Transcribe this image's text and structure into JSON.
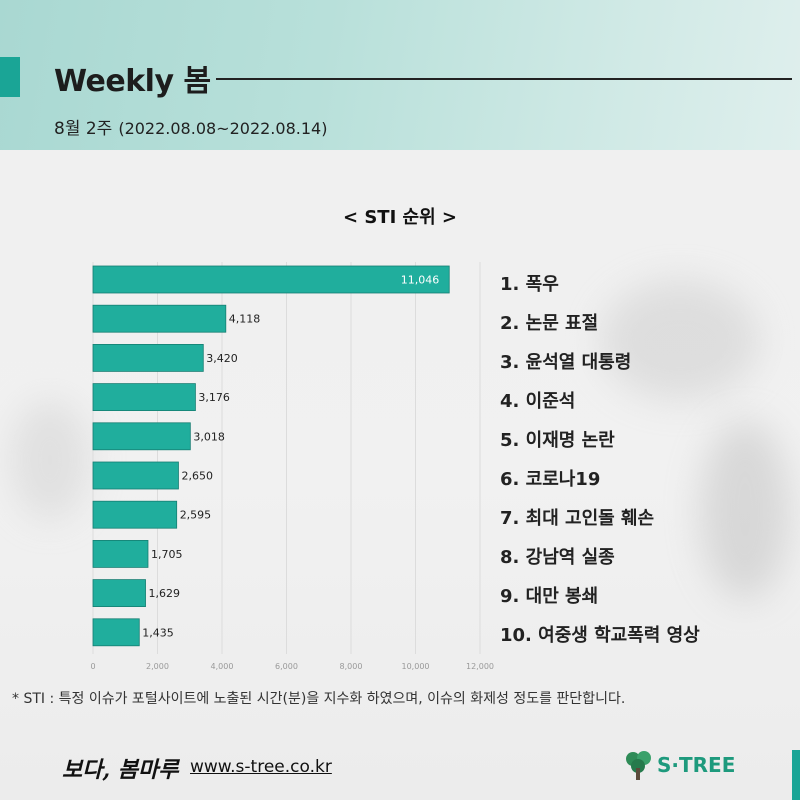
{
  "header": {
    "title": "Weekly 봄",
    "week_label": "8월 2주",
    "date_range": "(2022.08.08~2022.08.14)"
  },
  "chart_data": {
    "type": "bar",
    "title": "< STI 순위 >",
    "orientation": "horizontal",
    "categories": [
      "폭우",
      "논문 표절",
      "윤석열 대통령",
      "이준석",
      "이재명 논란",
      "코로나19",
      "최대 고인돌 훼손",
      "강남역 실종",
      "대만 봉쇄",
      "여중생 학교폭력 영상"
    ],
    "values": [
      11046,
      4118,
      3420,
      3176,
      3018,
      2650,
      2595,
      1705,
      1629,
      1435
    ],
    "value_labels": [
      "11,046",
      "4,118",
      "3,420",
      "3,176",
      "3,018",
      "2,650",
      "2,595",
      "1,705",
      "1,629",
      "1,435"
    ],
    "xlim": [
      0,
      12000
    ],
    "x_ticks": [
      0,
      2000,
      4000,
      6000,
      8000,
      10000,
      12000
    ],
    "x_tick_labels": [
      "0",
      "2,000",
      "4,000",
      "6,000",
      "8,000",
      "10,000",
      "12,000"
    ],
    "grid": true,
    "bar_color": "#20ae9d"
  },
  "legend": {
    "items": [
      "1. 폭우",
      "2. 논문 표절",
      "3. 윤석열 대통령",
      "4. 이준석",
      "5. 이재명 논란",
      "6. 코로나19",
      "7. 최대 고인돌 훼손",
      "8. 강남역 실종",
      "9. 대만 봉쇄",
      "10. 여중생 학교폭력 영상"
    ]
  },
  "footnote": "* STI : 특정 이슈가 포털사이트에 노출된 시간(분)을 지수화 하였으며, 이슈의 화제성 정도를 판단합니다.",
  "footer": {
    "signature": "보다, 봄마루",
    "url": "www.s-tree.co.kr",
    "logo_text": "S·TREE",
    "logo_icon": "tree-icon"
  },
  "colors": {
    "accent": "#1aa596",
    "header_bg": "#b8e0da",
    "logo_green": "#1e9a7d"
  }
}
